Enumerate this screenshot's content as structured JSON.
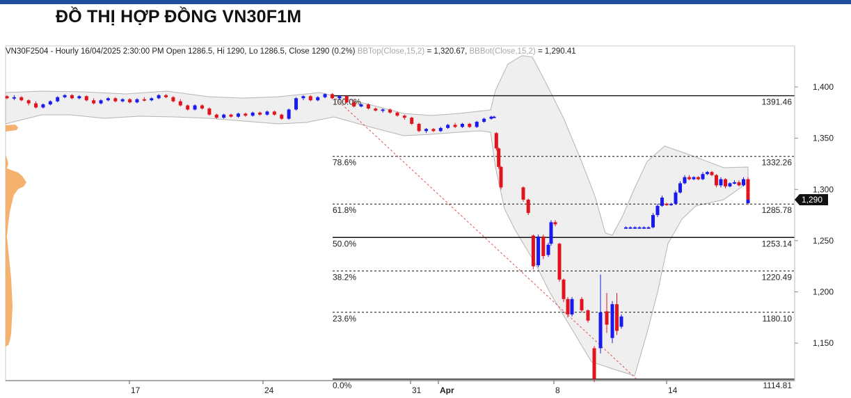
{
  "page_title": "ĐỒ THỊ HỢP ĐỒNG VN30F1M",
  "info": {
    "ohlc_text": "VN30F2504 - Hourly 16/04/2025 2:30:00 PM Open 1286.5, Hi 1290, Lo 1286.5, Close 1290 (0.2%)",
    "bbtop_label": "BBTop(Close,15,2)",
    "bbtop_value": "= 1,320.67,",
    "bbbot_label": "BBBot(Close,15,2)",
    "bbbot_value": "= 1,290.41"
  },
  "colors": {
    "up": "#1a1aee",
    "down": "#e0141e",
    "band_fill": "#efefef",
    "band_stroke": "#b4b4b4",
    "volume_profile": "#f4a85e",
    "trend": "#e05050",
    "price_tag": "#111111"
  },
  "chart_data": {
    "type": "candlestick",
    "title": "",
    "instrument": "VN30F2504",
    "interval": "Hourly",
    "ylim": [
      1110,
      1430
    ],
    "y_ticks": [
      {
        "value": 1400,
        "label": "1,400"
      },
      {
        "value": 1350,
        "label": "1,350"
      },
      {
        "value": 1300,
        "label": "1,300"
      },
      {
        "value": 1250,
        "label": "1,250"
      },
      {
        "value": 1200,
        "label": "1,200"
      },
      {
        "value": 1150,
        "label": "1,150"
      }
    ],
    "x_ticks": [
      "17",
      "24",
      "31",
      "Apr",
      "8",
      "14"
    ],
    "last_price": {
      "value": 1290,
      "label": "1,290"
    },
    "fibonacci": [
      {
        "ratio": "100.0%",
        "price": "1391.46",
        "value": 1391.46,
        "style": "solid"
      },
      {
        "ratio": "78.6%",
        "price": "1332.26",
        "value": 1332.26,
        "style": "dashed"
      },
      {
        "ratio": "61.8%",
        "price": "1285.78",
        "value": 1285.78,
        "style": "dashed"
      },
      {
        "ratio": "50.0%",
        "price": "1253.14",
        "value": 1253.14,
        "style": "solid"
      },
      {
        "ratio": "38.2%",
        "price": "1220.49",
        "value": 1220.49,
        "style": "dashed"
      },
      {
        "ratio": "23.6%",
        "price": "1180.10",
        "value": 1180.1,
        "style": "dashed"
      },
      {
        "ratio": "0.0%",
        "price": "1114.81",
        "value": 1114.81,
        "style": "solid"
      }
    ],
    "bollinger": {
      "period": 15,
      "deviation": 2,
      "top": 1320.67,
      "bottom": 1290.41
    },
    "trendline": {
      "from_price": 1391.46,
      "to_price": 1114.81
    },
    "candles": [
      {
        "o": 1391,
        "h": 1392,
        "l": 1388,
        "c": 1389
      },
      {
        "o": 1389,
        "h": 1392,
        "l": 1387,
        "c": 1390
      },
      {
        "o": 1390,
        "h": 1391,
        "l": 1386,
        "c": 1387
      },
      {
        "o": 1387,
        "h": 1388,
        "l": 1382,
        "c": 1384
      },
      {
        "o": 1384,
        "h": 1386,
        "l": 1379,
        "c": 1380
      },
      {
        "o": 1380,
        "h": 1384,
        "l": 1379,
        "c": 1383
      },
      {
        "o": 1383,
        "h": 1387,
        "l": 1382,
        "c": 1386
      },
      {
        "o": 1386,
        "h": 1391,
        "l": 1385,
        "c": 1390
      },
      {
        "o": 1390,
        "h": 1393,
        "l": 1389,
        "c": 1392
      },
      {
        "o": 1392,
        "h": 1393,
        "l": 1388,
        "c": 1389
      },
      {
        "o": 1389,
        "h": 1392,
        "l": 1388,
        "c": 1391
      },
      {
        "o": 1391,
        "h": 1392,
        "l": 1386,
        "c": 1387
      },
      {
        "o": 1387,
        "h": 1389,
        "l": 1383,
        "c": 1384
      },
      {
        "o": 1384,
        "h": 1388,
        "l": 1383,
        "c": 1387
      },
      {
        "o": 1387,
        "h": 1390,
        "l": 1386,
        "c": 1389
      },
      {
        "o": 1389,
        "h": 1390,
        "l": 1385,
        "c": 1386
      },
      {
        "o": 1386,
        "h": 1389,
        "l": 1385,
        "c": 1388
      },
      {
        "o": 1388,
        "h": 1389,
        "l": 1384,
        "c": 1385
      },
      {
        "o": 1385,
        "h": 1389,
        "l": 1384,
        "c": 1388
      },
      {
        "o": 1388,
        "h": 1390,
        "l": 1386,
        "c": 1387
      },
      {
        "o": 1387,
        "h": 1390,
        "l": 1386,
        "c": 1389
      },
      {
        "o": 1389,
        "h": 1393,
        "l": 1388,
        "c": 1392
      },
      {
        "o": 1392,
        "h": 1393,
        "l": 1389,
        "c": 1390
      },
      {
        "o": 1390,
        "h": 1391,
        "l": 1385,
        "c": 1386
      },
      {
        "o": 1386,
        "h": 1388,
        "l": 1381,
        "c": 1382
      },
      {
        "o": 1382,
        "h": 1383,
        "l": 1377,
        "c": 1378
      },
      {
        "o": 1378,
        "h": 1383,
        "l": 1377,
        "c": 1382
      },
      {
        "o": 1382,
        "h": 1383,
        "l": 1378,
        "c": 1379
      },
      {
        "o": 1379,
        "h": 1380,
        "l": 1372,
        "c": 1373
      },
      {
        "o": 1373,
        "h": 1374,
        "l": 1369,
        "c": 1370
      },
      {
        "o": 1370,
        "h": 1374,
        "l": 1369,
        "c": 1373
      },
      {
        "o": 1373,
        "h": 1374,
        "l": 1370,
        "c": 1371
      },
      {
        "o": 1371,
        "h": 1375,
        "l": 1370,
        "c": 1374
      },
      {
        "o": 1374,
        "h": 1375,
        "l": 1371,
        "c": 1372
      },
      {
        "o": 1372,
        "h": 1376,
        "l": 1371,
        "c": 1375
      },
      {
        "o": 1375,
        "h": 1376,
        "l": 1372,
        "c": 1373
      },
      {
        "o": 1373,
        "h": 1377,
        "l": 1372,
        "c": 1376
      },
      {
        "o": 1376,
        "h": 1377,
        "l": 1372,
        "c": 1373
      },
      {
        "o": 1373,
        "h": 1374,
        "l": 1368,
        "c": 1369
      },
      {
        "o": 1369,
        "h": 1379,
        "l": 1368,
        "c": 1378
      },
      {
        "o": 1378,
        "h": 1390,
        "l": 1377,
        "c": 1389
      },
      {
        "o": 1389,
        "h": 1392,
        "l": 1387,
        "c": 1391
      },
      {
        "o": 1391,
        "h": 1392,
        "l": 1386,
        "c": 1387
      },
      {
        "o": 1387,
        "h": 1391,
        "l": 1386,
        "c": 1390
      },
      {
        "o": 1390,
        "h": 1394,
        "l": 1389,
        "c": 1393
      },
      {
        "o": 1393,
        "h": 1394,
        "l": 1388,
        "c": 1389
      },
      {
        "o": 1389,
        "h": 1392,
        "l": 1387,
        "c": 1391
      },
      {
        "o": 1391,
        "h": 1392,
        "l": 1384,
        "c": 1385
      },
      {
        "o": 1385,
        "h": 1388,
        "l": 1380,
        "c": 1381
      },
      {
        "o": 1381,
        "h": 1384,
        "l": 1380,
        "c": 1383
      },
      {
        "o": 1383,
        "h": 1384,
        "l": 1378,
        "c": 1379
      },
      {
        "o": 1379,
        "h": 1380,
        "l": 1376,
        "c": 1377
      },
      {
        "o": 1377,
        "h": 1379,
        "l": 1375,
        "c": 1378
      },
      {
        "o": 1378,
        "h": 1379,
        "l": 1374,
        "c": 1375
      },
      {
        "o": 1375,
        "h": 1376,
        "l": 1371,
        "c": 1372
      },
      {
        "o": 1372,
        "h": 1373,
        "l": 1368,
        "c": 1370
      },
      {
        "o": 1370,
        "h": 1371,
        "l": 1363,
        "c": 1364
      },
      {
        "o": 1364,
        "h": 1365,
        "l": 1356,
        "c": 1357
      },
      {
        "o": 1357,
        "h": 1360,
        "l": 1355,
        "c": 1359
      },
      {
        "o": 1359,
        "h": 1360,
        "l": 1356,
        "c": 1357
      },
      {
        "o": 1357,
        "h": 1361,
        "l": 1356,
        "c": 1360
      },
      {
        "o": 1360,
        "h": 1364,
        "l": 1359,
        "c": 1363
      },
      {
        "o": 1363,
        "h": 1365,
        "l": 1360,
        "c": 1361
      },
      {
        "o": 1361,
        "h": 1365,
        "l": 1360,
        "c": 1364
      },
      {
        "o": 1364,
        "h": 1365,
        "l": 1360,
        "c": 1361
      },
      {
        "o": 1361,
        "h": 1367,
        "l": 1360,
        "c": 1366
      },
      {
        "o": 1366,
        "h": 1370,
        "l": 1365,
        "c": 1369
      },
      {
        "o": 1369,
        "h": 1372,
        "l": 1368,
        "c": 1371
      },
      {
        "o": 1371,
        "h": 1372,
        "l": 1370,
        "c": 1371
      },
      {
        "o": 1355,
        "h": 1356,
        "l": 1338,
        "c": 1340
      },
      {
        "o": 1340,
        "h": 1341,
        "l": 1320,
        "c": 1322
      },
      {
        "o": 1322,
        "h": 1323,
        "l": 1300,
        "c": 1302
      },
      {
        "o": 1302,
        "h": 1303,
        "l": 1288,
        "c": 1290
      },
      {
        "o": 1290,
        "h": 1291,
        "l": 1275,
        "c": 1277
      },
      {
        "o": 1255,
        "h": 1256,
        "l": 1222,
        "c": 1225
      },
      {
        "o": 1226,
        "h": 1256,
        "l": 1224,
        "c": 1254
      },
      {
        "o": 1254,
        "h": 1256,
        "l": 1232,
        "c": 1235
      },
      {
        "o": 1236,
        "h": 1248,
        "l": 1234,
        "c": 1246
      },
      {
        "o": 1247,
        "h": 1270,
        "l": 1245,
        "c": 1268
      },
      {
        "o": 1268,
        "h": 1270,
        "l": 1264,
        "c": 1266
      },
      {
        "o": 1247,
        "h": 1248,
        "l": 1210,
        "c": 1212
      },
      {
        "o": 1212,
        "h": 1213,
        "l": 1190,
        "c": 1193
      },
      {
        "o": 1193,
        "h": 1195,
        "l": 1175,
        "c": 1178
      },
      {
        "o": 1178,
        "h": 1195,
        "l": 1176,
        "c": 1193
      },
      {
        "o": 1193,
        "h": 1195,
        "l": 1180,
        "c": 1182
      },
      {
        "o": 1182,
        "h": 1183,
        "l": 1170,
        "c": 1172
      },
      {
        "o": 1145,
        "h": 1147,
        "l": 1112,
        "c": 1115
      },
      {
        "o": 1145,
        "h": 1217,
        "l": 1140,
        "c": 1180
      },
      {
        "o": 1181,
        "h": 1199,
        "l": 1160,
        "c": 1168
      },
      {
        "o": 1155,
        "h": 1191,
        "l": 1150,
        "c": 1188
      },
      {
        "o": 1188,
        "h": 1199,
        "l": 1158,
        "c": 1162
      },
      {
        "o": 1166,
        "h": 1178,
        "l": 1164,
        "c": 1176
      },
      {
        "o": 1263,
        "h": 1264,
        "l": 1262,
        "c": 1263
      },
      {
        "o": 1263,
        "h": 1264,
        "l": 1262,
        "c": 1263
      },
      {
        "o": 1263,
        "h": 1264,
        "l": 1262,
        "c": 1263
      },
      {
        "o": 1263,
        "h": 1264,
        "l": 1262,
        "c": 1263
      },
      {
        "o": 1263,
        "h": 1264,
        "l": 1262,
        "c": 1263
      },
      {
        "o": 1263,
        "h": 1264,
        "l": 1262,
        "c": 1263
      },
      {
        "o": 1263,
        "h": 1277,
        "l": 1262,
        "c": 1275
      },
      {
        "o": 1275,
        "h": 1286,
        "l": 1273,
        "c": 1284
      },
      {
        "o": 1284,
        "h": 1294,
        "l": 1283,
        "c": 1292
      },
      {
        "o": 1286,
        "h": 1287,
        "l": 1284,
        "c": 1285
      },
      {
        "o": 1285,
        "h": 1287,
        "l": 1284,
        "c": 1286
      },
      {
        "o": 1286,
        "h": 1299,
        "l": 1285,
        "c": 1297
      },
      {
        "o": 1297,
        "h": 1308,
        "l": 1296,
        "c": 1306
      },
      {
        "o": 1306,
        "h": 1314,
        "l": 1305,
        "c": 1312
      },
      {
        "o": 1312,
        "h": 1314,
        "l": 1309,
        "c": 1310
      },
      {
        "o": 1310,
        "h": 1313,
        "l": 1309,
        "c": 1312
      },
      {
        "o": 1312,
        "h": 1313,
        "l": 1309,
        "c": 1310
      },
      {
        "o": 1310,
        "h": 1317,
        "l": 1309,
        "c": 1315
      },
      {
        "o": 1315,
        "h": 1318,
        "l": 1314,
        "c": 1317
      },
      {
        "o": 1317,
        "h": 1318,
        "l": 1313,
        "c": 1314
      },
      {
        "o": 1314,
        "h": 1315,
        "l": 1302,
        "c": 1304
      },
      {
        "o": 1304,
        "h": 1312,
        "l": 1302,
        "c": 1310
      },
      {
        "o": 1310,
        "h": 1311,
        "l": 1301,
        "c": 1303
      },
      {
        "o": 1303,
        "h": 1307,
        "l": 1302,
        "c": 1306
      },
      {
        "o": 1306,
        "h": 1309,
        "l": 1305,
        "c": 1307
      },
      {
        "o": 1307,
        "h": 1309,
        "l": 1303,
        "c": 1304
      },
      {
        "o": 1304,
        "h": 1312,
        "l": 1303,
        "c": 1310
      },
      {
        "o": 1310,
        "h": 1312,
        "l": 1306,
        "c": 1307
      },
      {
        "o": 1307,
        "h": 1308,
        "l": 1295,
        "c": 1297
      },
      {
        "o": 1297,
        "h": 1298,
        "l": 1285,
        "c": 1287
      },
      {
        "o": 1286.5,
        "h": 1290,
        "l": 1286.5,
        "c": 1290
      }
    ]
  }
}
